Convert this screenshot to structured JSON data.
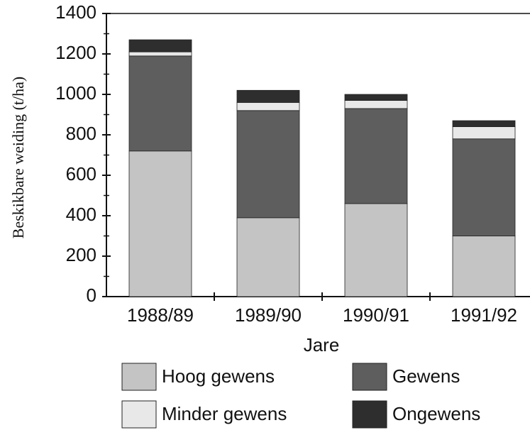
{
  "chart_data": {
    "type": "stacked_bar",
    "y_label": "Beskikbare weiding (t/ha)",
    "x_label": "Jare",
    "categories": [
      "1988/89",
      "1989/90",
      "1990/91",
      "1991/92"
    ],
    "series": [
      {
        "name": "Hoog gewens",
        "color": "#c4c4c4",
        "values": [
          720,
          390,
          460,
          300
        ]
      },
      {
        "name": "Gewens",
        "color": "#5e5e5e",
        "values": [
          470,
          530,
          470,
          480
        ]
      },
      {
        "name": "Minder gewens",
        "color": "#e8e8e8",
        "values": [
          20,
          40,
          40,
          60
        ]
      },
      {
        "name": "Ongewens",
        "color": "#2e2e2e",
        "values": [
          60,
          60,
          30,
          30
        ]
      }
    ],
    "ylim": [
      0,
      1400
    ],
    "yticks": [
      0,
      200,
      400,
      600,
      800,
      1000,
      1200,
      1400
    ]
  }
}
